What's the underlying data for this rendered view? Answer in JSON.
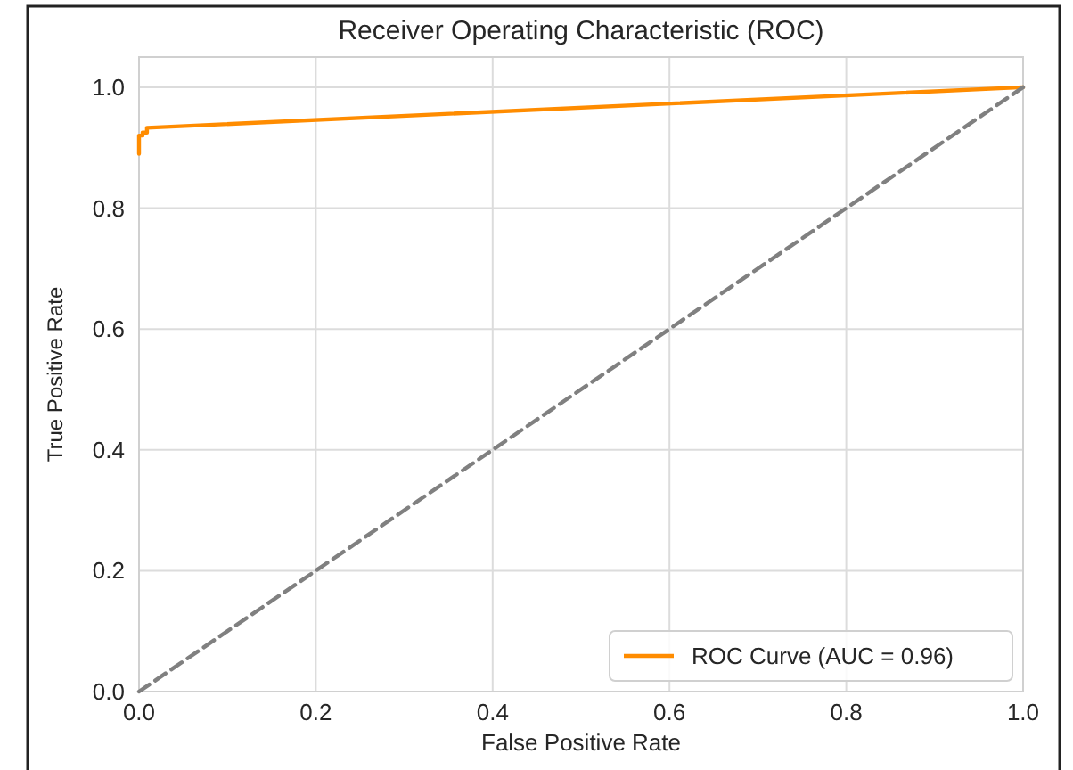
{
  "chart_data": {
    "type": "line",
    "title": "Receiver Operating Characteristic (ROC)",
    "xlabel": "False Positive Rate",
    "ylabel": "True Positive Rate",
    "series": [
      {
        "name": "ROC Curve (AUC = 0.96)",
        "color": "#ff8c00",
        "x": [
          0,
          0,
          0.004,
          0.004,
          0.009,
          0.009,
          1
        ],
        "values": [
          0.89,
          0.92,
          0.92,
          0.925,
          0.925,
          0.933,
          1
        ]
      },
      {
        "color": "#808080",
        "line_style": "dashed",
        "x": [
          0,
          1
        ],
        "values": [
          0,
          1
        ]
      }
    ],
    "xlim": [
      0,
      1
    ],
    "ylim": [
      0,
      1.05
    ],
    "xticks": [
      {
        "value": 0,
        "label": "0.0"
      },
      0.2,
      0.4,
      0.6,
      0.8,
      {
        "value": 1,
        "label": "1.0"
      }
    ],
    "yticks": [
      {
        "value": 0,
        "label": "0.0"
      },
      0.2,
      0.4,
      0.6,
      0.8,
      {
        "value": 1,
        "label": "1.0"
      }
    ],
    "grid": true,
    "legend": "bottom right"
  }
}
